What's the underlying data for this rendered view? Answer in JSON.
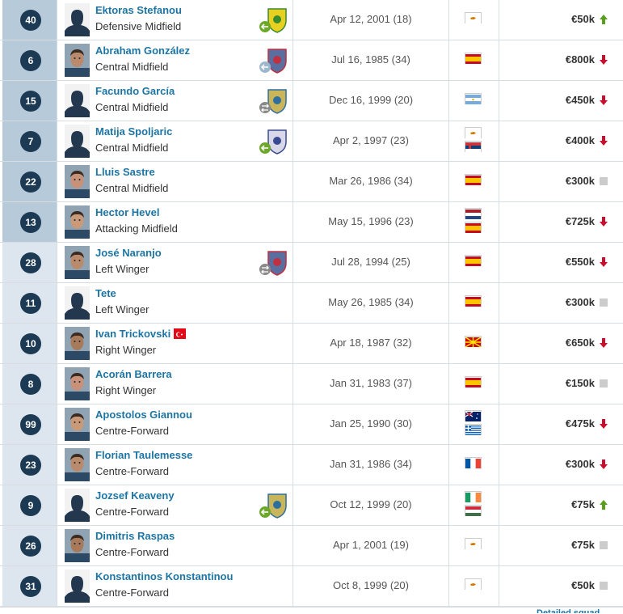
{
  "colors": {
    "badge": "#1d3a55",
    "link": "#1d75a3",
    "up": "#5a9e1e",
    "down": "#c8102e",
    "neutral": "#cccccc",
    "num_bg_dark": "#b6cad9",
    "num_bg_light": "#dde6ee"
  },
  "players": [
    {
      "number": "40",
      "name": "Ektoras Stefanou",
      "position": "Defensive Midfield",
      "dob": "Apr 12, 2001 (18)",
      "value": "€50k",
      "trend": "up",
      "photo": "silhouette",
      "crest": "club-crest-icon",
      "crest_badge": "loan-in",
      "flags": [
        "Cyprus"
      ]
    },
    {
      "number": "6",
      "name": "Abraham González",
      "position": "Central Midfield",
      "dob": "Jul 16, 1985 (34)",
      "value": "€800k",
      "trend": "down",
      "photo": "face",
      "crest": "club-crest-icon",
      "crest_badge": "loan-out",
      "flags": [
        "Spain"
      ]
    },
    {
      "number": "15",
      "name": "Facundo García",
      "position": "Central Midfield",
      "dob": "Dec 16, 1999 (20)",
      "value": "€450k",
      "trend": "down",
      "photo": "silhouette",
      "crest": "club-crest-icon",
      "crest_badge": "transfer",
      "flags": [
        "Argentina"
      ]
    },
    {
      "number": "7",
      "name": "Matija Spoljaric",
      "position": "Central Midfield",
      "dob": "Apr 2, 1997 (23)",
      "value": "€400k",
      "trend": "down",
      "photo": "silhouette",
      "crest": "club-crest-icon",
      "crest_badge": "loan-in",
      "flags": [
        "Cyprus",
        "Serbia"
      ]
    },
    {
      "number": "22",
      "name": "Lluis Sastre",
      "position": "Central Midfield",
      "dob": "Mar 26, 1986 (34)",
      "value": "€300k",
      "trend": "none",
      "photo": "face",
      "crest": "",
      "crest_badge": "",
      "flags": [
        "Spain"
      ]
    },
    {
      "number": "13",
      "name": "Hector Hevel",
      "position": "Attacking Midfield",
      "dob": "May 15, 1996 (23)",
      "value": "€725k",
      "trend": "down",
      "photo": "face",
      "crest": "",
      "crest_badge": "",
      "flags": [
        "Netherlands",
        "Spain"
      ]
    },
    {
      "number": "28",
      "name": "José Naranjo",
      "position": "Left Winger",
      "dob": "Jul 28, 1994 (25)",
      "value": "€550k",
      "trend": "down",
      "photo": "face",
      "crest": "club-crest-icon",
      "crest_badge": "transfer",
      "flags": [
        "Spain"
      ]
    },
    {
      "number": "11",
      "name": "Tete",
      "position": "Left Winger",
      "dob": "May 26, 1985 (34)",
      "value": "€300k",
      "trend": "none",
      "photo": "silhouette",
      "crest": "",
      "crest_badge": "",
      "flags": [
        "Spain"
      ]
    },
    {
      "number": "10",
      "name": "Ivan Trickovski",
      "position": "Right Winger",
      "dob": "Apr 18, 1987 (32)",
      "value": "€650k",
      "trend": "down",
      "photo": "face",
      "crest": "",
      "crest_badge": "",
      "flags": [
        "North Macedonia"
      ],
      "name_flag": "Turkey"
    },
    {
      "number": "8",
      "name": "Acorán Barrera",
      "position": "Right Winger",
      "dob": "Jan 31, 1983 (37)",
      "value": "€150k",
      "trend": "none",
      "photo": "face",
      "crest": "",
      "crest_badge": "",
      "flags": [
        "Spain"
      ]
    },
    {
      "number": "99",
      "name": "Apostolos Giannou",
      "position": "Centre-Forward",
      "dob": "Jan 25, 1990 (30)",
      "value": "€475k",
      "trend": "down",
      "photo": "face",
      "crest": "",
      "crest_badge": "",
      "flags": [
        "Australia",
        "Greece"
      ]
    },
    {
      "number": "23",
      "name": "Florian Taulemesse",
      "position": "Centre-Forward",
      "dob": "Jan 31, 1986 (34)",
      "value": "€300k",
      "trend": "down",
      "photo": "face",
      "crest": "",
      "crest_badge": "",
      "flags": [
        "France"
      ]
    },
    {
      "number": "9",
      "name": "Jozsef Keaveny",
      "position": "Centre-Forward",
      "dob": "Oct 12, 1999 (20)",
      "value": "€75k",
      "trend": "up",
      "photo": "silhouette",
      "crest": "club-crest-icon",
      "crest_badge": "loan-in",
      "flags": [
        "Ireland",
        "Hungary"
      ]
    },
    {
      "number": "26",
      "name": "Dimitris Raspas",
      "position": "Centre-Forward",
      "dob": "Apr 1, 2001 (19)",
      "value": "€75k",
      "trend": "none",
      "photo": "face",
      "crest": "",
      "crest_badge": "",
      "flags": [
        "Cyprus"
      ]
    },
    {
      "number": "31",
      "name": "Konstantinos Konstantinou",
      "position": "Centre-Forward",
      "dob": "Oct 8, 1999 (20)",
      "value": "€50k",
      "trend": "none",
      "photo": "silhouette",
      "crest": "",
      "crest_badge": "",
      "flags": [
        "Cyprus"
      ]
    }
  ],
  "footer_link": "Detailed squad"
}
